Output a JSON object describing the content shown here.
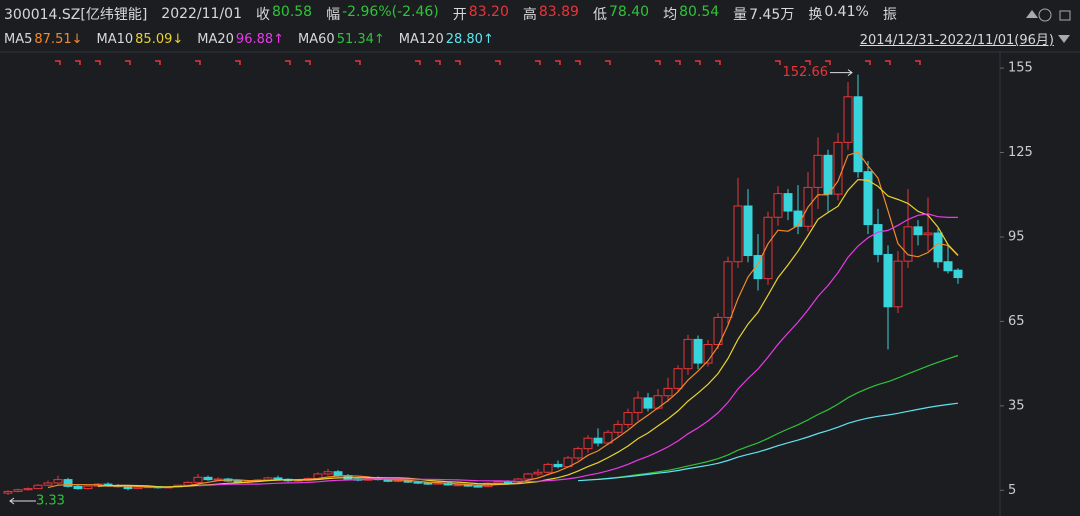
{
  "header": {
    "code": "300014.SZ[亿纬锂能]",
    "date": "2022/11/01",
    "fields": [
      {
        "label": "收",
        "value": "80.58",
        "color": "#2fc23a"
      },
      {
        "label": "幅",
        "value": "-2.96%(-2.46)",
        "color": "#2fc23a"
      },
      {
        "label": "开",
        "value": "83.20",
        "color": "#e8353a"
      },
      {
        "label": "高",
        "value": "83.89",
        "color": "#e8353a"
      },
      {
        "label": "低",
        "value": "78.40",
        "color": "#2fc23a"
      },
      {
        "label": "均",
        "value": "80.54",
        "color": "#2fc23a"
      },
      {
        "label": "量",
        "value": "7.45万",
        "color": "#d8d8d8"
      },
      {
        "label": "换",
        "value": "0.41%",
        "color": "#d8d8d8"
      }
    ],
    "last_label": "振"
  },
  "ma_legend": [
    {
      "name": "MA5",
      "value": "87.51↓",
      "color": "#f08a2c"
    },
    {
      "name": "MA10",
      "value": "85.09↓",
      "color": "#e8d22e"
    },
    {
      "name": "MA20",
      "value": "96.88↑",
      "color": "#e83ae8"
    },
    {
      "name": "MA60",
      "value": "51.34↑",
      "color": "#2fc23a"
    },
    {
      "name": "MA120",
      "value": "28.80↑",
      "color": "#5fe3f0"
    }
  ],
  "range": "2014/12/31-2022/11/01(96月)",
  "chart_data": {
    "type": "candlestick",
    "up_color": "#e8353a",
    "down_color": "#38d4dc",
    "ylim": [
      -2,
      160
    ],
    "yticks": [
      5,
      35,
      65,
      95,
      125,
      155
    ],
    "max_label": "152.66",
    "min_label": "3.33",
    "candles": [
      [
        4.0,
        5.0,
        3.33,
        4.6
      ],
      [
        4.6,
        5.6,
        4.3,
        5.2
      ],
      [
        5.2,
        6.0,
        4.9,
        5.6
      ],
      [
        5.6,
        7.2,
        5.4,
        6.8
      ],
      [
        6.8,
        8.5,
        6.5,
        7.6
      ],
      [
        7.6,
        10.2,
        7.0,
        8.8
      ],
      [
        8.8,
        9.4,
        6.0,
        6.4
      ],
      [
        6.4,
        7.0,
        5.2,
        5.6
      ],
      [
        5.6,
        6.8,
        5.3,
        6.5
      ],
      [
        6.5,
        7.6,
        6.2,
        7.2
      ],
      [
        7.2,
        7.8,
        6.4,
        6.7
      ],
      [
        6.7,
        7.2,
        6.0,
        6.3
      ],
      [
        6.3,
        6.6,
        5.0,
        5.6
      ],
      [
        5.6,
        6.4,
        5.4,
        6.1
      ],
      [
        6.1,
        6.6,
        5.8,
        6.3
      ],
      [
        6.3,
        6.5,
        5.6,
        5.9
      ],
      [
        5.9,
        6.4,
        5.7,
        6.2
      ],
      [
        6.2,
        7.0,
        6.0,
        6.8
      ],
      [
        6.8,
        8.2,
        6.6,
        7.8
      ],
      [
        7.8,
        10.8,
        7.5,
        9.6
      ],
      [
        9.6,
        10.2,
        8.4,
        8.8
      ],
      [
        8.8,
        9.6,
        8.2,
        9.0
      ],
      [
        9.0,
        9.4,
        8.0,
        8.3
      ],
      [
        8.3,
        8.8,
        7.6,
        8.0
      ],
      [
        8.0,
        8.6,
        7.4,
        8.2
      ],
      [
        8.2,
        9.0,
        7.9,
        8.7
      ],
      [
        8.7,
        9.8,
        8.5,
        9.4
      ],
      [
        9.4,
        10.2,
        8.6,
        8.9
      ],
      [
        8.9,
        9.3,
        8.0,
        8.4
      ],
      [
        8.4,
        9.0,
        8.0,
        8.6
      ],
      [
        8.6,
        9.6,
        8.3,
        9.2
      ],
      [
        9.2,
        11.4,
        8.9,
        10.8
      ],
      [
        10.8,
        12.6,
        10.2,
        11.6
      ],
      [
        11.6,
        12.2,
        9.8,
        10.2
      ],
      [
        10.2,
        10.8,
        8.6,
        9.0
      ],
      [
        9.0,
        9.6,
        8.2,
        8.6
      ],
      [
        8.6,
        9.8,
        8.3,
        9.4
      ],
      [
        9.4,
        9.9,
        8.5,
        8.8
      ],
      [
        8.8,
        9.2,
        7.9,
        8.2
      ],
      [
        8.2,
        8.8,
        7.8,
        8.5
      ],
      [
        8.5,
        8.9,
        7.6,
        7.9
      ],
      [
        7.9,
        8.4,
        7.2,
        7.6
      ],
      [
        7.6,
        8.0,
        6.9,
        7.2
      ],
      [
        7.2,
        7.9,
        7.0,
        7.6
      ],
      [
        7.6,
        8.0,
        6.6,
        6.9
      ],
      [
        6.9,
        7.4,
        6.4,
        7.0
      ],
      [
        7.0,
        7.3,
        6.2,
        6.5
      ],
      [
        6.5,
        7.0,
        5.9,
        6.3
      ],
      [
        6.3,
        7.8,
        6.1,
        7.5
      ],
      [
        7.5,
        8.4,
        7.0,
        8.0
      ],
      [
        8.0,
        8.6,
        7.2,
        7.6
      ],
      [
        7.6,
        9.4,
        7.4,
        9.0
      ],
      [
        9.0,
        11.2,
        8.6,
        10.8
      ],
      [
        10.8,
        12.6,
        10.0,
        11.4
      ],
      [
        11.4,
        14.8,
        11.0,
        14.2
      ],
      [
        14.2,
        15.6,
        12.8,
        13.4
      ],
      [
        13.4,
        17.2,
        13.0,
        16.5
      ],
      [
        16.5,
        20.5,
        15.6,
        19.8
      ],
      [
        19.8,
        24.6,
        18.4,
        23.5
      ],
      [
        23.5,
        27.0,
        20.6,
        21.8
      ],
      [
        21.8,
        26.4,
        21.0,
        25.6
      ],
      [
        25.6,
        29.8,
        24.2,
        28.4
      ],
      [
        28.4,
        34.0,
        27.2,
        32.6
      ],
      [
        32.6,
        40.2,
        29.8,
        37.8
      ],
      [
        37.8,
        39.6,
        33.0,
        34.2
      ],
      [
        34.2,
        41.0,
        33.6,
        38.6
      ],
      [
        38.6,
        45.0,
        36.4,
        41.2
      ],
      [
        41.2,
        49.4,
        40.0,
        48.2
      ],
      [
        48.2,
        60.2,
        46.0,
        58.6
      ],
      [
        58.6,
        60.0,
        48.0,
        50.2
      ],
      [
        50.2,
        58.4,
        49.0,
        56.8
      ],
      [
        56.8,
        68.0,
        55.2,
        66.4
      ],
      [
        66.4,
        88.0,
        64.0,
        86.2
      ],
      [
        86.2,
        116.0,
        84.0,
        106.0
      ],
      [
        106.0,
        112.0,
        86.0,
        88.4
      ],
      [
        88.4,
        96.0,
        76.0,
        80.2
      ],
      [
        80.2,
        104.0,
        78.0,
        102.0
      ],
      [
        102.0,
        113.0,
        99.0,
        110.4
      ],
      [
        110.4,
        112.0,
        101.0,
        104.2
      ],
      [
        104.2,
        113.4,
        96.0,
        98.8
      ],
      [
        98.8,
        118.0,
        97.0,
        112.6
      ],
      [
        112.6,
        130.4,
        105.0,
        124.0
      ],
      [
        124.0,
        126.0,
        104.0,
        110.2
      ],
      [
        110.2,
        132.0,
        108.0,
        128.6
      ],
      [
        128.6,
        150.0,
        126.0,
        144.8
      ],
      [
        144.8,
        152.66,
        116.0,
        118.2
      ],
      [
        118.2,
        122.0,
        96.0,
        99.4
      ],
      [
        99.4,
        105.0,
        86.0,
        88.8
      ],
      [
        88.8,
        92.0,
        55.0,
        70.2
      ],
      [
        70.2,
        90.0,
        68.0,
        86.4
      ],
      [
        86.4,
        112.0,
        84.0,
        98.6
      ],
      [
        98.6,
        101.0,
        92.0,
        95.8
      ],
      [
        95.8,
        109.0,
        90.0,
        96.4
      ],
      [
        96.4,
        98.0,
        84.0,
        86.2
      ],
      [
        86.2,
        92.0,
        82.0,
        83.0
      ],
      [
        83.2,
        83.89,
        78.4,
        80.58
      ]
    ]
  }
}
